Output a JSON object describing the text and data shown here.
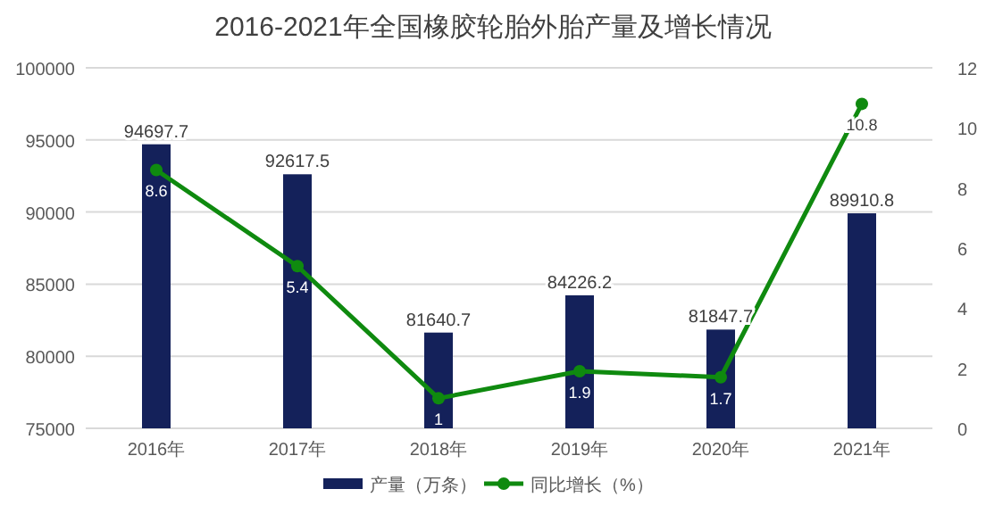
{
  "chart_data": {
    "type": "bar",
    "title": "2016-2021年全国橡胶轮胎外胎产量及增长情况",
    "categories": [
      "2016年",
      "2017年",
      "2018年",
      "2019年",
      "2020年",
      "2021年"
    ],
    "series": [
      {
        "name": "产量（万条）",
        "color": "#14215a",
        "values": [
          94697.7,
          92617.5,
          81640.7,
          84226.2,
          81847.7,
          89910.8
        ]
      },
      {
        "name": "同比增长（%）",
        "type": "line",
        "axis": "y2",
        "color": "#0f8a0f",
        "values": [
          8.6,
          5.4,
          1,
          1.9,
          1.7,
          10.8
        ]
      }
    ],
    "ylim": [
      75000,
      100000
    ],
    "yticks": [
      75000,
      80000,
      85000,
      90000,
      95000,
      100000
    ],
    "y2lim": [
      0,
      12
    ],
    "y2ticks": [
      0,
      2,
      4,
      6,
      8,
      10,
      12
    ],
    "grid": "y",
    "legend": "bottom",
    "marker": "circle",
    "line_style": "solid",
    "data_labels": true
  }
}
